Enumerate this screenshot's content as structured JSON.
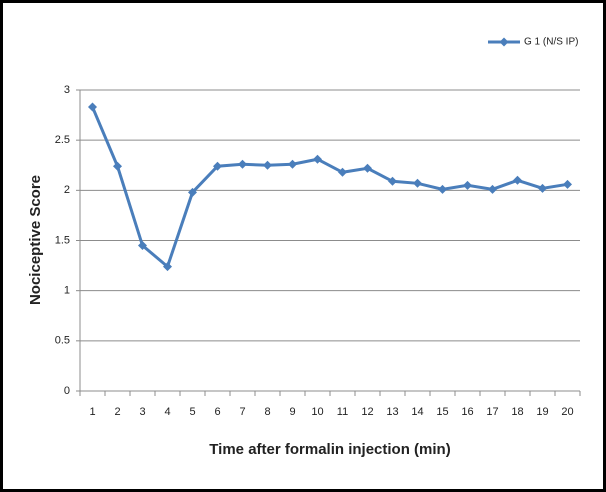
{
  "chart_data": {
    "type": "line",
    "x_label": "Time after formalin injection (min)",
    "y_label": "Nociceptive Score",
    "categories": [
      "1",
      "2",
      "3",
      "4",
      "5",
      "6",
      "7",
      "8",
      "9",
      "10",
      "11",
      "12",
      "13",
      "14",
      "15",
      "16",
      "17",
      "18",
      "19",
      "20"
    ],
    "series": [
      {
        "name": "G 1 (N/S IP)",
        "color": "#4a7ebb",
        "values": [
          2.83,
          2.24,
          1.45,
          1.24,
          1.98,
          2.24,
          2.26,
          2.25,
          2.26,
          2.31,
          2.18,
          2.22,
          2.09,
          2.07,
          2.01,
          2.05,
          2.01,
          2.1,
          2.02,
          2.06
        ]
      }
    ],
    "ylim": [
      0,
      3
    ],
    "yticks": [
      0,
      0.5,
      1,
      1.5,
      2,
      2.5,
      3
    ],
    "grid": true,
    "legend": "top-right"
  }
}
